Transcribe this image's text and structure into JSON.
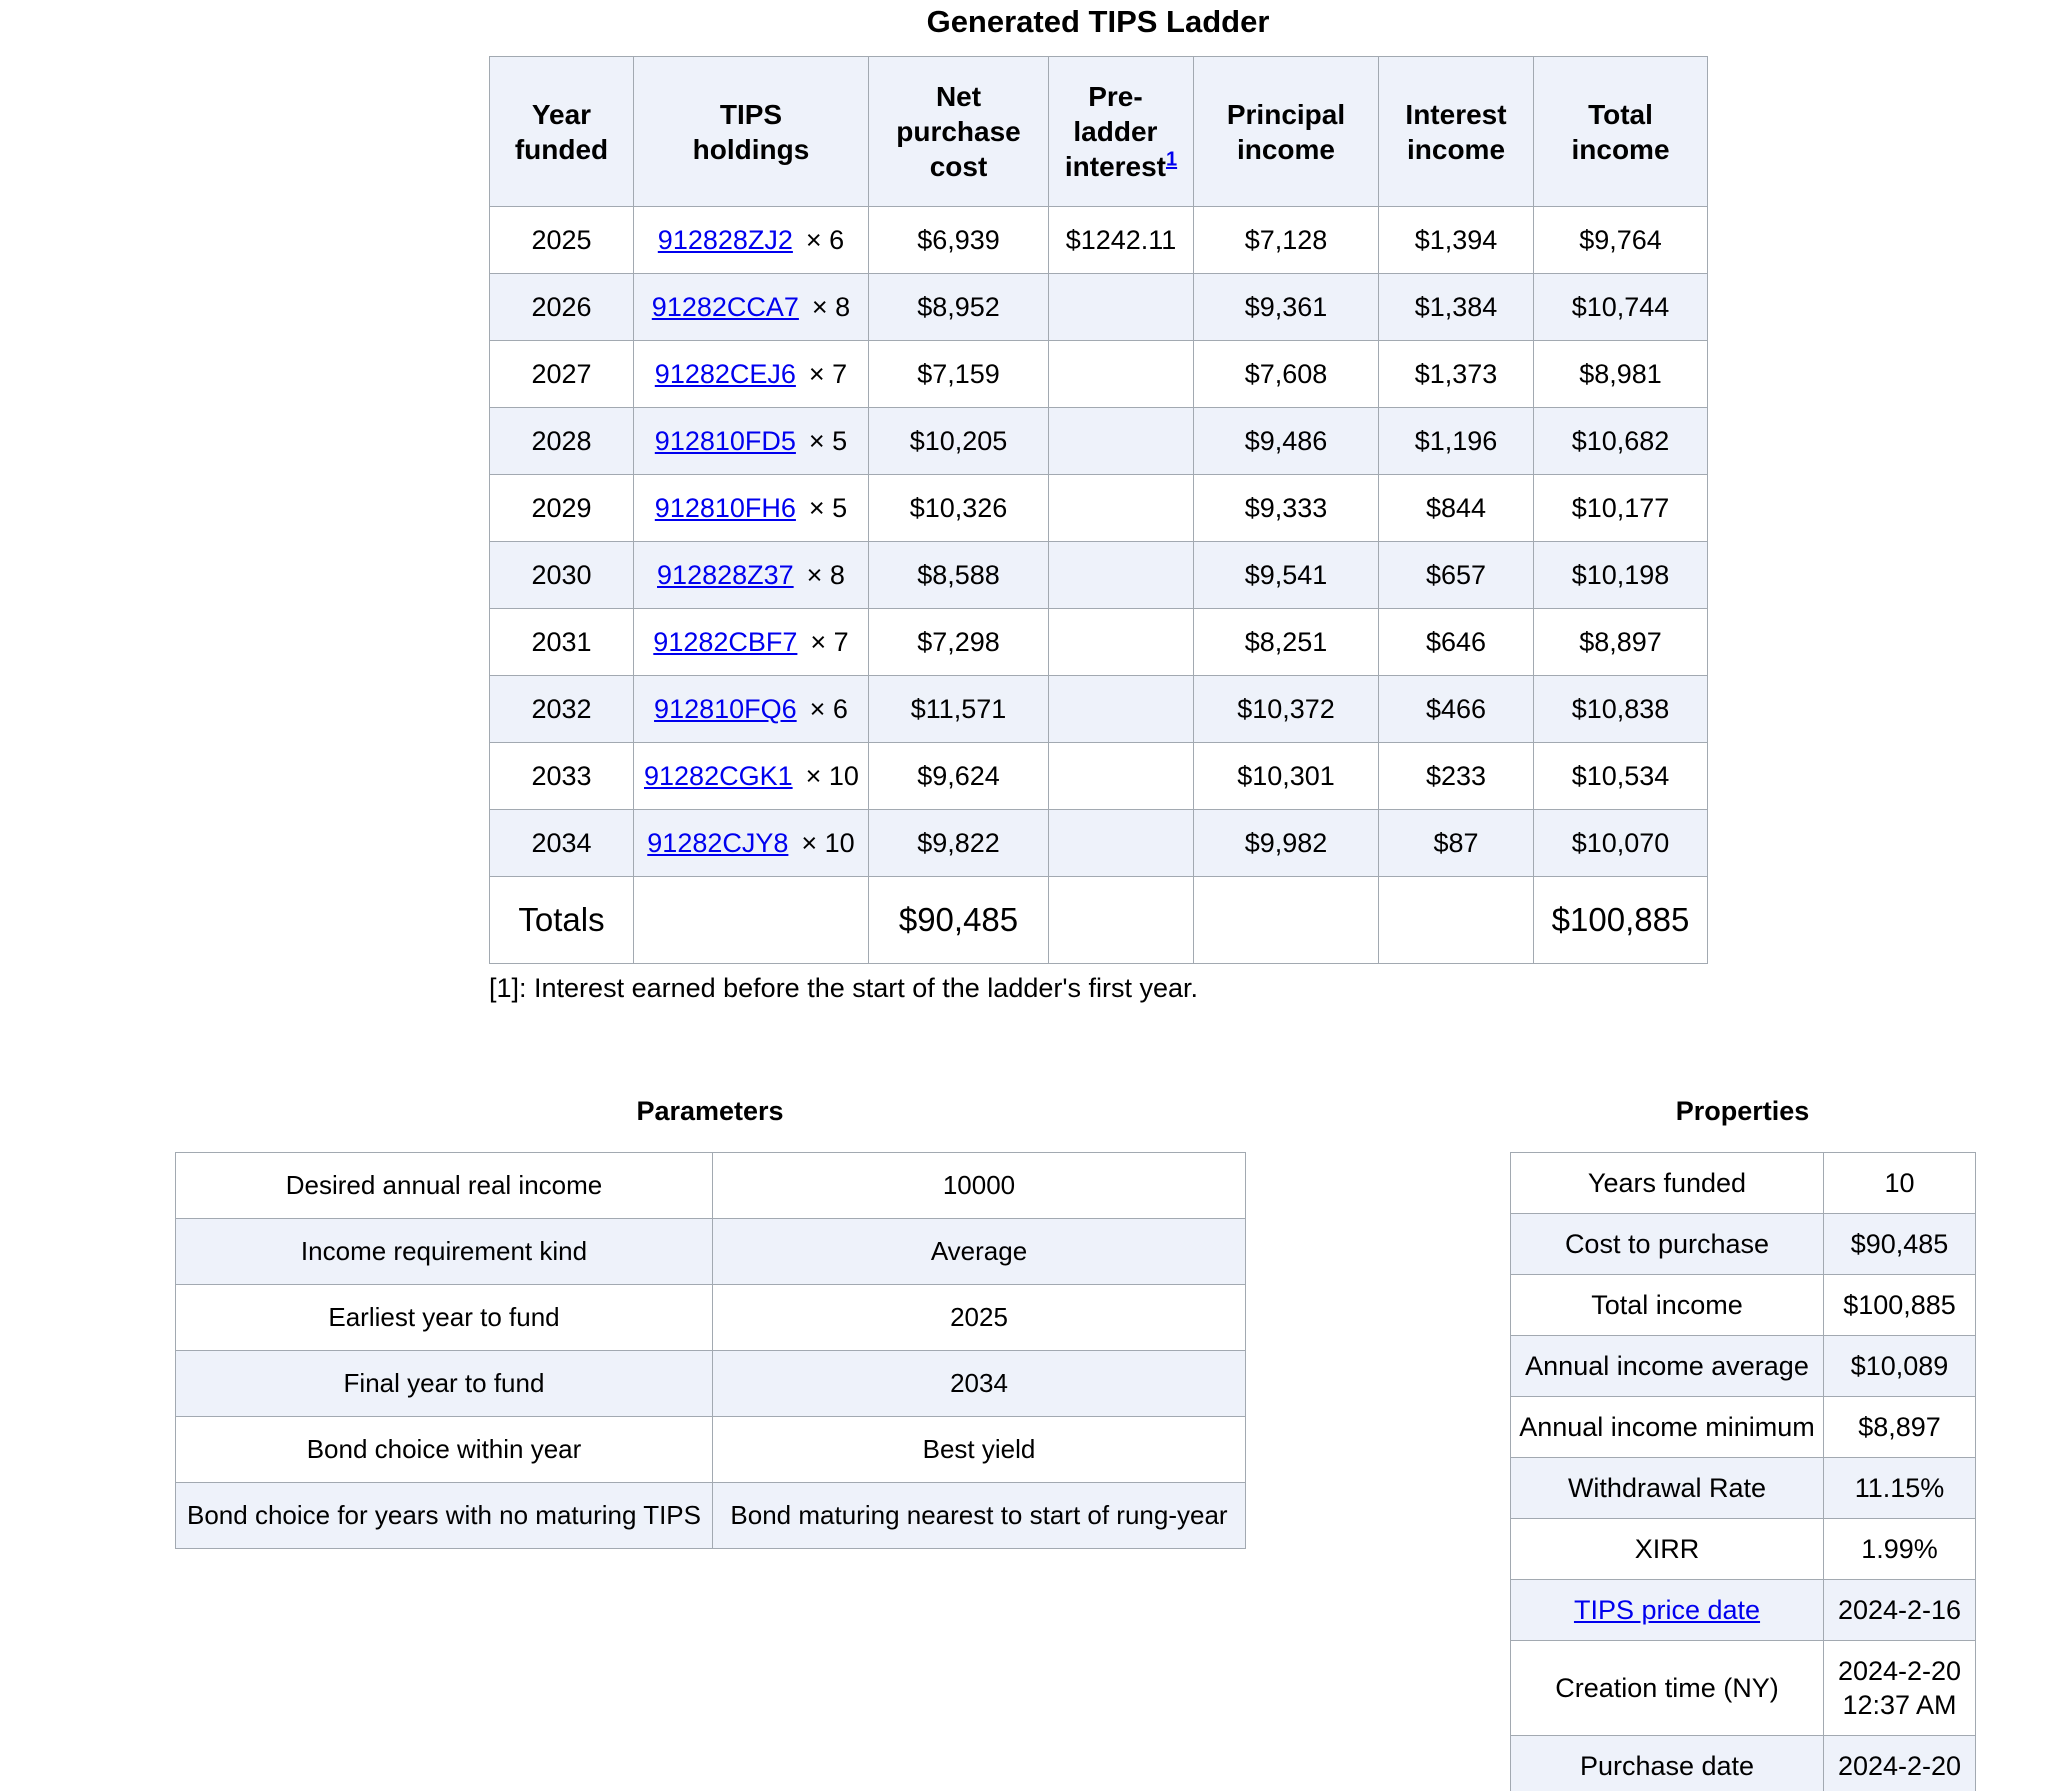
{
  "title": "Generated TIPS Ladder",
  "ladder": {
    "columns": [
      {
        "key": "year-funded",
        "label": "Year funded"
      },
      {
        "key": "tips-holdings",
        "label": "TIPS holdings"
      },
      {
        "key": "net-purchase-cost",
        "label": "Net purchase cost"
      },
      {
        "key": "pre-ladder-interest",
        "label": "Pre-ladder interest",
        "sup": "1"
      },
      {
        "key": "principal-income",
        "label": "Principal income"
      },
      {
        "key": "interest-income",
        "label": "Interest income"
      },
      {
        "key": "total-income",
        "label": "Total income"
      }
    ],
    "rows": [
      {
        "year": "2025",
        "cusip": "912828ZJ2",
        "qty_label": "×  6",
        "net_purchase_cost": "$6,939",
        "pre_ladder_interest": "$1242.11",
        "principal_income": "$7,128",
        "interest_income": "$1,394",
        "total_income": "$9,764"
      },
      {
        "year": "2026",
        "cusip": "91282CCA7",
        "qty_label": "×  8",
        "net_purchase_cost": "$8,952",
        "pre_ladder_interest": "",
        "principal_income": "$9,361",
        "interest_income": "$1,384",
        "total_income": "$10,744"
      },
      {
        "year": "2027",
        "cusip": "91282CEJ6",
        "qty_label": "×  7",
        "net_purchase_cost": "$7,159",
        "pre_ladder_interest": "",
        "principal_income": "$7,608",
        "interest_income": "$1,373",
        "total_income": "$8,981"
      },
      {
        "year": "2028",
        "cusip": "912810FD5",
        "qty_label": "×  5",
        "net_purchase_cost": "$10,205",
        "pre_ladder_interest": "",
        "principal_income": "$9,486",
        "interest_income": "$1,196",
        "total_income": "$10,682"
      },
      {
        "year": "2029",
        "cusip": "912810FH6",
        "qty_label": "×  5",
        "net_purchase_cost": "$10,326",
        "pre_ladder_interest": "",
        "principal_income": "$9,333",
        "interest_income": "$844",
        "total_income": "$10,177"
      },
      {
        "year": "2030",
        "cusip": "912828Z37",
        "qty_label": "×  8",
        "net_purchase_cost": "$8,588",
        "pre_ladder_interest": "",
        "principal_income": "$9,541",
        "interest_income": "$657",
        "total_income": "$10,198"
      },
      {
        "year": "2031",
        "cusip": "91282CBF7",
        "qty_label": "×  7",
        "net_purchase_cost": "$7,298",
        "pre_ladder_interest": "",
        "principal_income": "$8,251",
        "interest_income": "$646",
        "total_income": "$8,897"
      },
      {
        "year": "2032",
        "cusip": "912810FQ6",
        "qty_label": "×  6",
        "net_purchase_cost": "$11,571",
        "pre_ladder_interest": "",
        "principal_income": "$10,372",
        "interest_income": "$466",
        "total_income": "$10,838"
      },
      {
        "year": "2033",
        "cusip": "91282CGK1",
        "qty_label": "× 10",
        "net_purchase_cost": "$9,624",
        "pre_ladder_interest": "",
        "principal_income": "$10,301",
        "interest_income": "$233",
        "total_income": "$10,534"
      },
      {
        "year": "2034",
        "cusip": "91282CJY8",
        "qty_label": "× 10",
        "net_purchase_cost": "$9,822",
        "pre_ladder_interest": "",
        "principal_income": "$9,982",
        "interest_income": "$87",
        "total_income": "$10,070"
      }
    ],
    "totals": {
      "label": "Totals",
      "net_purchase_cost": "$90,485",
      "total_income": "$100,885"
    }
  },
  "footnote": "[1]: Interest earned before the start of the ladder's first year.",
  "parameters": {
    "title": "Parameters",
    "rows": [
      {
        "label": "Desired annual real income",
        "value": "10000"
      },
      {
        "label": "Income requirement kind",
        "value": "Average"
      },
      {
        "label": "Earliest year to fund",
        "value": "2025"
      },
      {
        "label": "Final year to fund",
        "value": "2034"
      },
      {
        "label": "Bond choice within year",
        "value": "Best yield"
      },
      {
        "label": "Bond choice for years with no maturing TIPS",
        "value": "Bond maturing nearest to start of rung-year"
      }
    ]
  },
  "properties": {
    "title": "Properties",
    "rows": [
      {
        "label": "Years funded",
        "value": "10"
      },
      {
        "label": "Cost to purchase",
        "value": "$90,485"
      },
      {
        "label": "Total income",
        "value": "$100,885"
      },
      {
        "label": "Annual income average",
        "value": "$10,089"
      },
      {
        "label": "Annual income minimum",
        "value": "$8,897"
      },
      {
        "label": "Withdrawal Rate",
        "value": "11.15%"
      },
      {
        "label": "XIRR",
        "value": "1.99%"
      },
      {
        "label": "TIPS price date",
        "value": "2024-2-16",
        "link": true
      },
      {
        "label": "Creation time (NY)",
        "value": "2024-2-20 12:37 AM"
      },
      {
        "label": "Purchase date",
        "value": "2024-2-20"
      }
    ]
  },
  "colors": {
    "link_blue": "#0000ee",
    "row_stripe": "#eef2fa",
    "table_border": "#a2a9b1"
  }
}
